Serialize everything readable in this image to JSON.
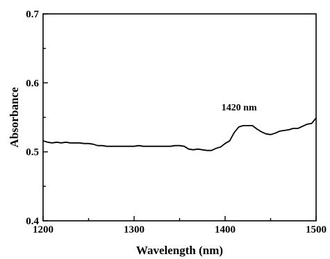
{
  "chart_data": {
    "type": "line",
    "title": "",
    "xlabel": "Wavelength (nm)",
    "ylabel": "Absorbance",
    "xlim": [
      1200,
      1500
    ],
    "ylim": [
      0.4,
      0.7
    ],
    "grid": false,
    "x_ticks": [
      1200,
      1300,
      1400,
      1500
    ],
    "x_tick_labels": [
      "1200",
      "1300",
      "1400",
      "1500"
    ],
    "y_ticks": [
      0.4,
      0.5,
      0.6,
      0.7
    ],
    "y_tick_labels": [
      "0.4",
      "0.5",
      "0.6",
      "0.7"
    ],
    "annotations": [
      {
        "text": "1420 nm",
        "x": 1420,
        "y": 0.538
      }
    ],
    "series": [
      {
        "color": "#000000",
        "x": [
          1200,
          1205,
          1210,
          1215,
          1220,
          1225,
          1230,
          1235,
          1240,
          1245,
          1250,
          1255,
          1260,
          1265,
          1270,
          1275,
          1280,
          1285,
          1290,
          1295,
          1300,
          1305,
          1310,
          1315,
          1320,
          1325,
          1330,
          1335,
          1340,
          1345,
          1350,
          1355,
          1360,
          1365,
          1370,
          1375,
          1380,
          1385,
          1390,
          1395,
          1400,
          1405,
          1410,
          1415,
          1420,
          1425,
          1430,
          1435,
          1440,
          1445,
          1450,
          1455,
          1460,
          1465,
          1470,
          1475,
          1480,
          1485,
          1490,
          1495,
          1500
        ],
        "y": [
          0.516,
          0.514,
          0.513,
          0.514,
          0.513,
          0.514,
          0.513,
          0.513,
          0.513,
          0.512,
          0.512,
          0.511,
          0.509,
          0.509,
          0.508,
          0.508,
          0.508,
          0.508,
          0.508,
          0.508,
          0.508,
          0.509,
          0.508,
          0.508,
          0.508,
          0.508,
          0.508,
          0.508,
          0.508,
          0.509,
          0.509,
          0.508,
          0.504,
          0.503,
          0.504,
          0.503,
          0.502,
          0.502,
          0.505,
          0.507,
          0.512,
          0.516,
          0.528,
          0.536,
          0.538,
          0.538,
          0.538,
          0.533,
          0.529,
          0.526,
          0.525,
          0.527,
          0.53,
          0.531,
          0.532,
          0.534,
          0.534,
          0.537,
          0.54,
          0.541,
          0.549
        ]
      }
    ]
  }
}
